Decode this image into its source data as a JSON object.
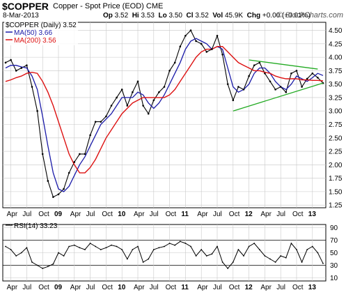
{
  "header": {
    "symbol": "$COPPER",
    "description": "Copper - Spot Price (EOD)",
    "exchange": "CME",
    "date": "8-Mar-2013",
    "open_label": "Op",
    "open": "3.52",
    "high_label": "Hi",
    "high": "3.53",
    "low_label": "Lo",
    "low": "3.50",
    "close_label": "Cl",
    "close": "3.52",
    "volume_label": "Vol",
    "volume": "45.9K",
    "change_label": "Chg",
    "change": "+0.00 (+0.01%)",
    "brand": "© StockCharts.com"
  },
  "legend": {
    "price": "$COPPER (Daily) 3.52",
    "ma50": "MA(50) 3.66",
    "ma200": "MA(200) 3.56",
    "rsi": "RSI(14) 33.23"
  },
  "colors": {
    "price": "#000000",
    "ma50": "#1a1aa8",
    "ma200": "#dd1111",
    "trend": "#22aa22",
    "rsi": "#000000",
    "grid": "#c8c8c8"
  },
  "x_axis": {
    "labels": [
      "Apr",
      "Jul",
      "Oct",
      "09",
      "Apr",
      "Jul",
      "Oct",
      "10",
      "Apr",
      "Jul",
      "Oct",
      "11",
      "Apr",
      "Jul",
      "Oct",
      "12",
      "Apr",
      "Jul",
      "Oct",
      "13"
    ]
  },
  "chart_data": [
    {
      "type": "line",
      "title": "$COPPER (Daily)",
      "x": [
        "2008-03",
        "2008-04",
        "2008-05",
        "2008-06",
        "2008-07",
        "2008-08",
        "2008-09",
        "2008-10",
        "2008-11",
        "2008-12",
        "2009-01",
        "2009-02",
        "2009-03",
        "2009-04",
        "2009-05",
        "2009-06",
        "2009-07",
        "2009-08",
        "2009-09",
        "2009-10",
        "2009-11",
        "2009-12",
        "2010-01",
        "2010-02",
        "2010-03",
        "2010-04",
        "2010-05",
        "2010-06",
        "2010-07",
        "2010-08",
        "2010-09",
        "2010-10",
        "2010-11",
        "2010-12",
        "2011-01",
        "2011-02",
        "2011-03",
        "2011-04",
        "2011-05",
        "2011-06",
        "2011-07",
        "2011-08",
        "2011-09",
        "2011-10",
        "2011-11",
        "2011-12",
        "2012-01",
        "2012-02",
        "2012-03",
        "2012-04",
        "2012-05",
        "2012-06",
        "2012-07",
        "2012-08",
        "2012-09",
        "2012-10",
        "2012-11",
        "2012-12",
        "2013-01",
        "2013-02",
        "2013-03"
      ],
      "series": [
        {
          "name": "$COPPER (Daily)",
          "values": [
            3.9,
            3.95,
            3.75,
            3.8,
            3.85,
            3.45,
            3.0,
            2.2,
            1.7,
            1.4,
            1.45,
            1.55,
            1.85,
            2.05,
            2.2,
            2.2,
            2.55,
            2.8,
            2.8,
            2.9,
            3.1,
            3.25,
            3.4,
            3.1,
            3.35,
            3.55,
            3.1,
            2.95,
            3.2,
            3.35,
            3.45,
            3.75,
            3.9,
            4.2,
            4.4,
            4.5,
            4.3,
            4.25,
            4.1,
            4.15,
            4.4,
            4.05,
            3.5,
            3.2,
            3.45,
            3.4,
            3.65,
            3.85,
            3.9,
            3.7,
            3.55,
            3.4,
            3.45,
            3.35,
            3.7,
            3.75,
            3.45,
            3.6,
            3.7,
            3.62,
            3.52
          ]
        },
        {
          "name": "MA(50)",
          "values": [
            3.8,
            3.85,
            3.85,
            3.82,
            3.8,
            3.65,
            3.4,
            2.9,
            2.35,
            1.85,
            1.55,
            1.5,
            1.6,
            1.8,
            2.0,
            2.15,
            2.35,
            2.55,
            2.75,
            2.85,
            2.95,
            3.1,
            3.25,
            3.25,
            3.25,
            3.35,
            3.3,
            3.15,
            3.05,
            3.15,
            3.3,
            3.5,
            3.7,
            3.9,
            4.15,
            4.3,
            4.35,
            4.3,
            4.25,
            4.15,
            4.2,
            4.15,
            3.8,
            3.45,
            3.35,
            3.4,
            3.5,
            3.7,
            3.8,
            3.8,
            3.7,
            3.55,
            3.45,
            3.4,
            3.5,
            3.65,
            3.6,
            3.55,
            3.62,
            3.7,
            3.66
          ]
        },
        {
          "name": "MA(200)",
          "values": [
            3.55,
            3.58,
            3.62,
            3.65,
            3.7,
            3.72,
            3.7,
            3.55,
            3.35,
            3.1,
            2.8,
            2.5,
            2.2,
            2.0,
            1.85,
            1.85,
            1.95,
            2.1,
            2.3,
            2.5,
            2.65,
            2.8,
            2.95,
            3.05,
            3.15,
            3.2,
            3.25,
            3.25,
            3.25,
            3.25,
            3.25,
            3.3,
            3.4,
            3.55,
            3.7,
            3.85,
            4.0,
            4.1,
            4.15,
            4.15,
            4.2,
            4.2,
            4.1,
            4.0,
            3.9,
            3.85,
            3.8,
            3.75,
            3.75,
            3.72,
            3.7,
            3.65,
            3.62,
            3.6,
            3.6,
            3.6,
            3.58,
            3.58,
            3.57,
            3.57,
            3.56
          ]
        }
      ],
      "trendlines": [
        {
          "from": [
            "2012-01",
            3.95
          ],
          "to": [
            "2013-02",
            3.78
          ]
        },
        {
          "from": [
            "2011-10",
            3.0
          ],
          "to": [
            "2013-03",
            3.52
          ]
        }
      ],
      "ylim": [
        1.2,
        4.65
      ],
      "yticks": [
        4.5,
        4.25,
        4.0,
        3.75,
        3.5,
        3.25,
        3.0,
        2.75,
        2.5,
        2.25,
        2.0,
        1.75,
        1.5,
        1.25
      ],
      "grid": true
    },
    {
      "type": "line",
      "title": "RSI(14)",
      "x": [
        "2008-03",
        "2008-04",
        "2008-05",
        "2008-06",
        "2008-07",
        "2008-08",
        "2008-09",
        "2008-10",
        "2008-11",
        "2008-12",
        "2009-01",
        "2009-02",
        "2009-03",
        "2009-04",
        "2009-05",
        "2009-06",
        "2009-07",
        "2009-08",
        "2009-09",
        "2009-10",
        "2009-11",
        "2009-12",
        "2010-01",
        "2010-02",
        "2010-03",
        "2010-04",
        "2010-05",
        "2010-06",
        "2010-07",
        "2010-08",
        "2010-09",
        "2010-10",
        "2010-11",
        "2010-12",
        "2011-01",
        "2011-02",
        "2011-03",
        "2011-04",
        "2011-05",
        "2011-06",
        "2011-07",
        "2011-08",
        "2011-09",
        "2011-10",
        "2011-11",
        "2011-12",
        "2012-01",
        "2012-02",
        "2012-03",
        "2012-04",
        "2012-05",
        "2012-06",
        "2012-07",
        "2012-08",
        "2012-09",
        "2012-10",
        "2012-11",
        "2012-12",
        "2013-01",
        "2013-02",
        "2013-03"
      ],
      "series": [
        {
          "name": "RSI(14)",
          "values": [
            60,
            55,
            45,
            50,
            58,
            35,
            30,
            25,
            28,
            32,
            50,
            45,
            60,
            62,
            58,
            55,
            65,
            60,
            55,
            58,
            62,
            60,
            55,
            40,
            55,
            60,
            35,
            40,
            55,
            58,
            60,
            65,
            62,
            68,
            65,
            60,
            45,
            55,
            45,
            48,
            60,
            35,
            25,
            35,
            55,
            45,
            60,
            65,
            55,
            45,
            40,
            35,
            45,
            42,
            65,
            55,
            35,
            55,
            60,
            50,
            33
          ]
        }
      ],
      "ylim": [
        5,
        95
      ],
      "yticks": [
        90,
        70,
        50,
        30,
        10
      ],
      "reference_lines": [
        70,
        30
      ],
      "grid": true
    }
  ]
}
